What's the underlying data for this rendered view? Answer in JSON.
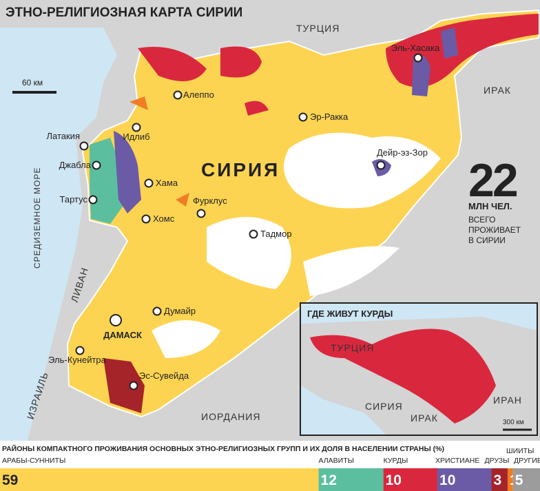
{
  "title": "ЭТНО-РЕЛИГИОЗНАЯ КАРТА СИРИИ",
  "scale": "60 км",
  "countries": [
    "ТУРЦИЯ",
    "ИРАК",
    "ЛИВАН",
    "ИЗРАИЛЬ",
    "ИОРДАНИЯ"
  ],
  "sea": "СРЕДИЗЕМНОЕ МОРЕ",
  "country_label": "СИРИЯ",
  "cities": [
    "Алеппо",
    "Идлиб",
    "Латакия",
    "Джабла",
    "Тартус",
    "Хама",
    "Хомс",
    "Фурклус",
    "Тадмор",
    "Эр-Ракка",
    "Дейр-эз-Зор",
    "Эль-Хасака",
    "Думайр",
    "ДАМАСК",
    "Эль-Кунейтра",
    "Эс-Сувейда"
  ],
  "population": {
    "value": 22,
    "unit": "МЛН ЧЕЛ.",
    "caption": [
      "ВСЕГО",
      "ПРОЖИВАЕТ",
      "В СИРИИ"
    ]
  },
  "inset": {
    "title": "ГДЕ ЖИВУТ КУРДЫ",
    "labels": [
      "ТУРЦИЯ",
      "СИРИЯ",
      "ИРАК",
      "ИРАН"
    ],
    "scale": "300 км"
  },
  "groups": {
    "title": "РАЙОНЫ КОМПАКТНОГО ПРОЖИВАНИЯ ОСНОВНЫХ ЭТНО-РЕЛИГИОЗНЫХ ГРУПП И ИХ ДОЛЯ В НАСЕЛЕНИИ СТРАНЫ (%)",
    "items": [
      {
        "name": "АРАБЫ-СУННИТЫ",
        "value": 59,
        "color": "#fdd452"
      },
      {
        "name": "АЛАВИТЫ",
        "value": 12,
        "color": "#5bbf9f"
      },
      {
        "name": "КУРДЫ",
        "value": 10,
        "color": "#d9283e"
      },
      {
        "name": "ХРИСТИАНЕ",
        "value": 10,
        "color": "#6b5ba6"
      },
      {
        "name": "ДРУЗЫ",
        "value": 3,
        "color": "#a52429"
      },
      {
        "name": "ШИИТЫ",
        "value": 1,
        "color": "#f07d23"
      },
      {
        "name": "ДРУГИЕ",
        "value": 5,
        "color": "#9c9c9c"
      }
    ]
  }
}
